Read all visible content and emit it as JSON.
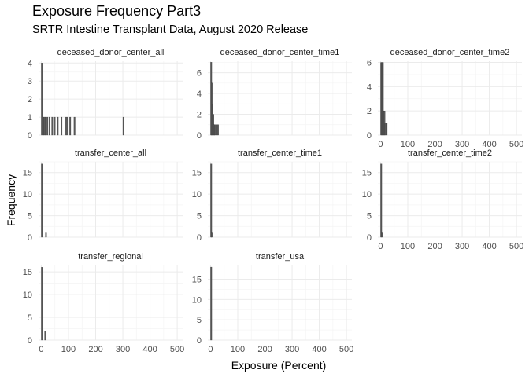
{
  "title": "Exposure Frequency Part3",
  "subtitle": "SRTR Intestine Transplant Data, August 2020 Release",
  "chart_data": {
    "type": "bar",
    "xlabel": "Exposure (Percent)",
    "ylabel": "Frequency",
    "xlim": [
      -10,
      520
    ],
    "x_ticks": [
      0,
      100,
      200,
      300,
      400,
      500
    ],
    "grid": true,
    "panels": [
      {
        "name": "deceased_donor_center_all",
        "ylim": [
          0,
          4.1
        ],
        "y_ticks": [
          0,
          1,
          2,
          3,
          4
        ],
        "show_x_ticks": false,
        "bars": [
          {
            "x": 0,
            "count": 4
          },
          {
            "x": 5,
            "count": 1
          },
          {
            "x": 9,
            "count": 1
          },
          {
            "x": 14,
            "count": 1
          },
          {
            "x": 20,
            "count": 1
          },
          {
            "x": 28,
            "count": 1
          },
          {
            "x": 38,
            "count": 1
          },
          {
            "x": 47,
            "count": 1
          },
          {
            "x": 58,
            "count": 1
          },
          {
            "x": 72,
            "count": 1
          },
          {
            "x": 86,
            "count": 1
          },
          {
            "x": 92,
            "count": 1
          },
          {
            "x": 104,
            "count": 1
          },
          {
            "x": 120,
            "count": 1
          },
          {
            "x": 300,
            "count": 1
          }
        ]
      },
      {
        "name": "deceased_donor_center_time1",
        "ylim": [
          0,
          7.1
        ],
        "y_ticks": [
          0,
          2,
          4,
          6
        ],
        "show_x_ticks": false,
        "bars": [
          {
            "x": 0,
            "count": 7
          },
          {
            "x": 2,
            "count": 5
          },
          {
            "x": 5,
            "count": 3
          },
          {
            "x": 8,
            "count": 2
          },
          {
            "x": 11,
            "count": 1
          },
          {
            "x": 14,
            "count": 1
          },
          {
            "x": 20,
            "count": 1
          },
          {
            "x": 25,
            "count": 1
          }
        ]
      },
      {
        "name": "deceased_donor_center_time2",
        "ylim": [
          0,
          6.1
        ],
        "y_ticks": [
          0,
          2,
          4,
          6
        ],
        "show_x_ticks": true,
        "bars": [
          {
            "x": 0,
            "count": 6
          },
          {
            "x": 3,
            "count": 6
          },
          {
            "x": 6,
            "count": 6
          },
          {
            "x": 9,
            "count": 2
          },
          {
            "x": 12,
            "count": 2
          },
          {
            "x": 15,
            "count": 1
          },
          {
            "x": 20,
            "count": 1
          }
        ]
      },
      {
        "name": "transfer_center_all",
        "ylim": [
          0,
          17.5
        ],
        "y_ticks": [
          0,
          5,
          10,
          15
        ],
        "show_x_ticks": false,
        "bars": [
          {
            "x": 0,
            "count": 17
          },
          {
            "x": 15,
            "count": 1
          }
        ]
      },
      {
        "name": "transfer_center_time1",
        "ylim": [
          0,
          17.5
        ],
        "y_ticks": [
          0,
          5,
          10,
          15
        ],
        "show_x_ticks": false,
        "bars": [
          {
            "x": 0,
            "count": 17
          },
          {
            "x": 2,
            "count": 1
          }
        ]
      },
      {
        "name": "transfer_center_time2",
        "ylim": [
          0,
          17.5
        ],
        "y_ticks": [
          0,
          5,
          10,
          15
        ],
        "show_x_ticks": true,
        "bars": [
          {
            "x": 0,
            "count": 17
          },
          {
            "x": 3,
            "count": 1
          }
        ]
      },
      {
        "name": "transfer_regional",
        "ylim": [
          0,
          16.4
        ],
        "y_ticks": [
          0,
          5,
          10,
          15
        ],
        "show_x_ticks": true,
        "bars": [
          {
            "x": 0,
            "count": 16
          },
          {
            "x": 12,
            "count": 2
          }
        ]
      },
      {
        "name": "transfer_usa",
        "ylim": [
          0,
          18.4
        ],
        "y_ticks": [
          0,
          5,
          10,
          15
        ],
        "show_x_ticks": true,
        "bars": [
          {
            "x": 0,
            "count": 18
          }
        ]
      }
    ]
  }
}
